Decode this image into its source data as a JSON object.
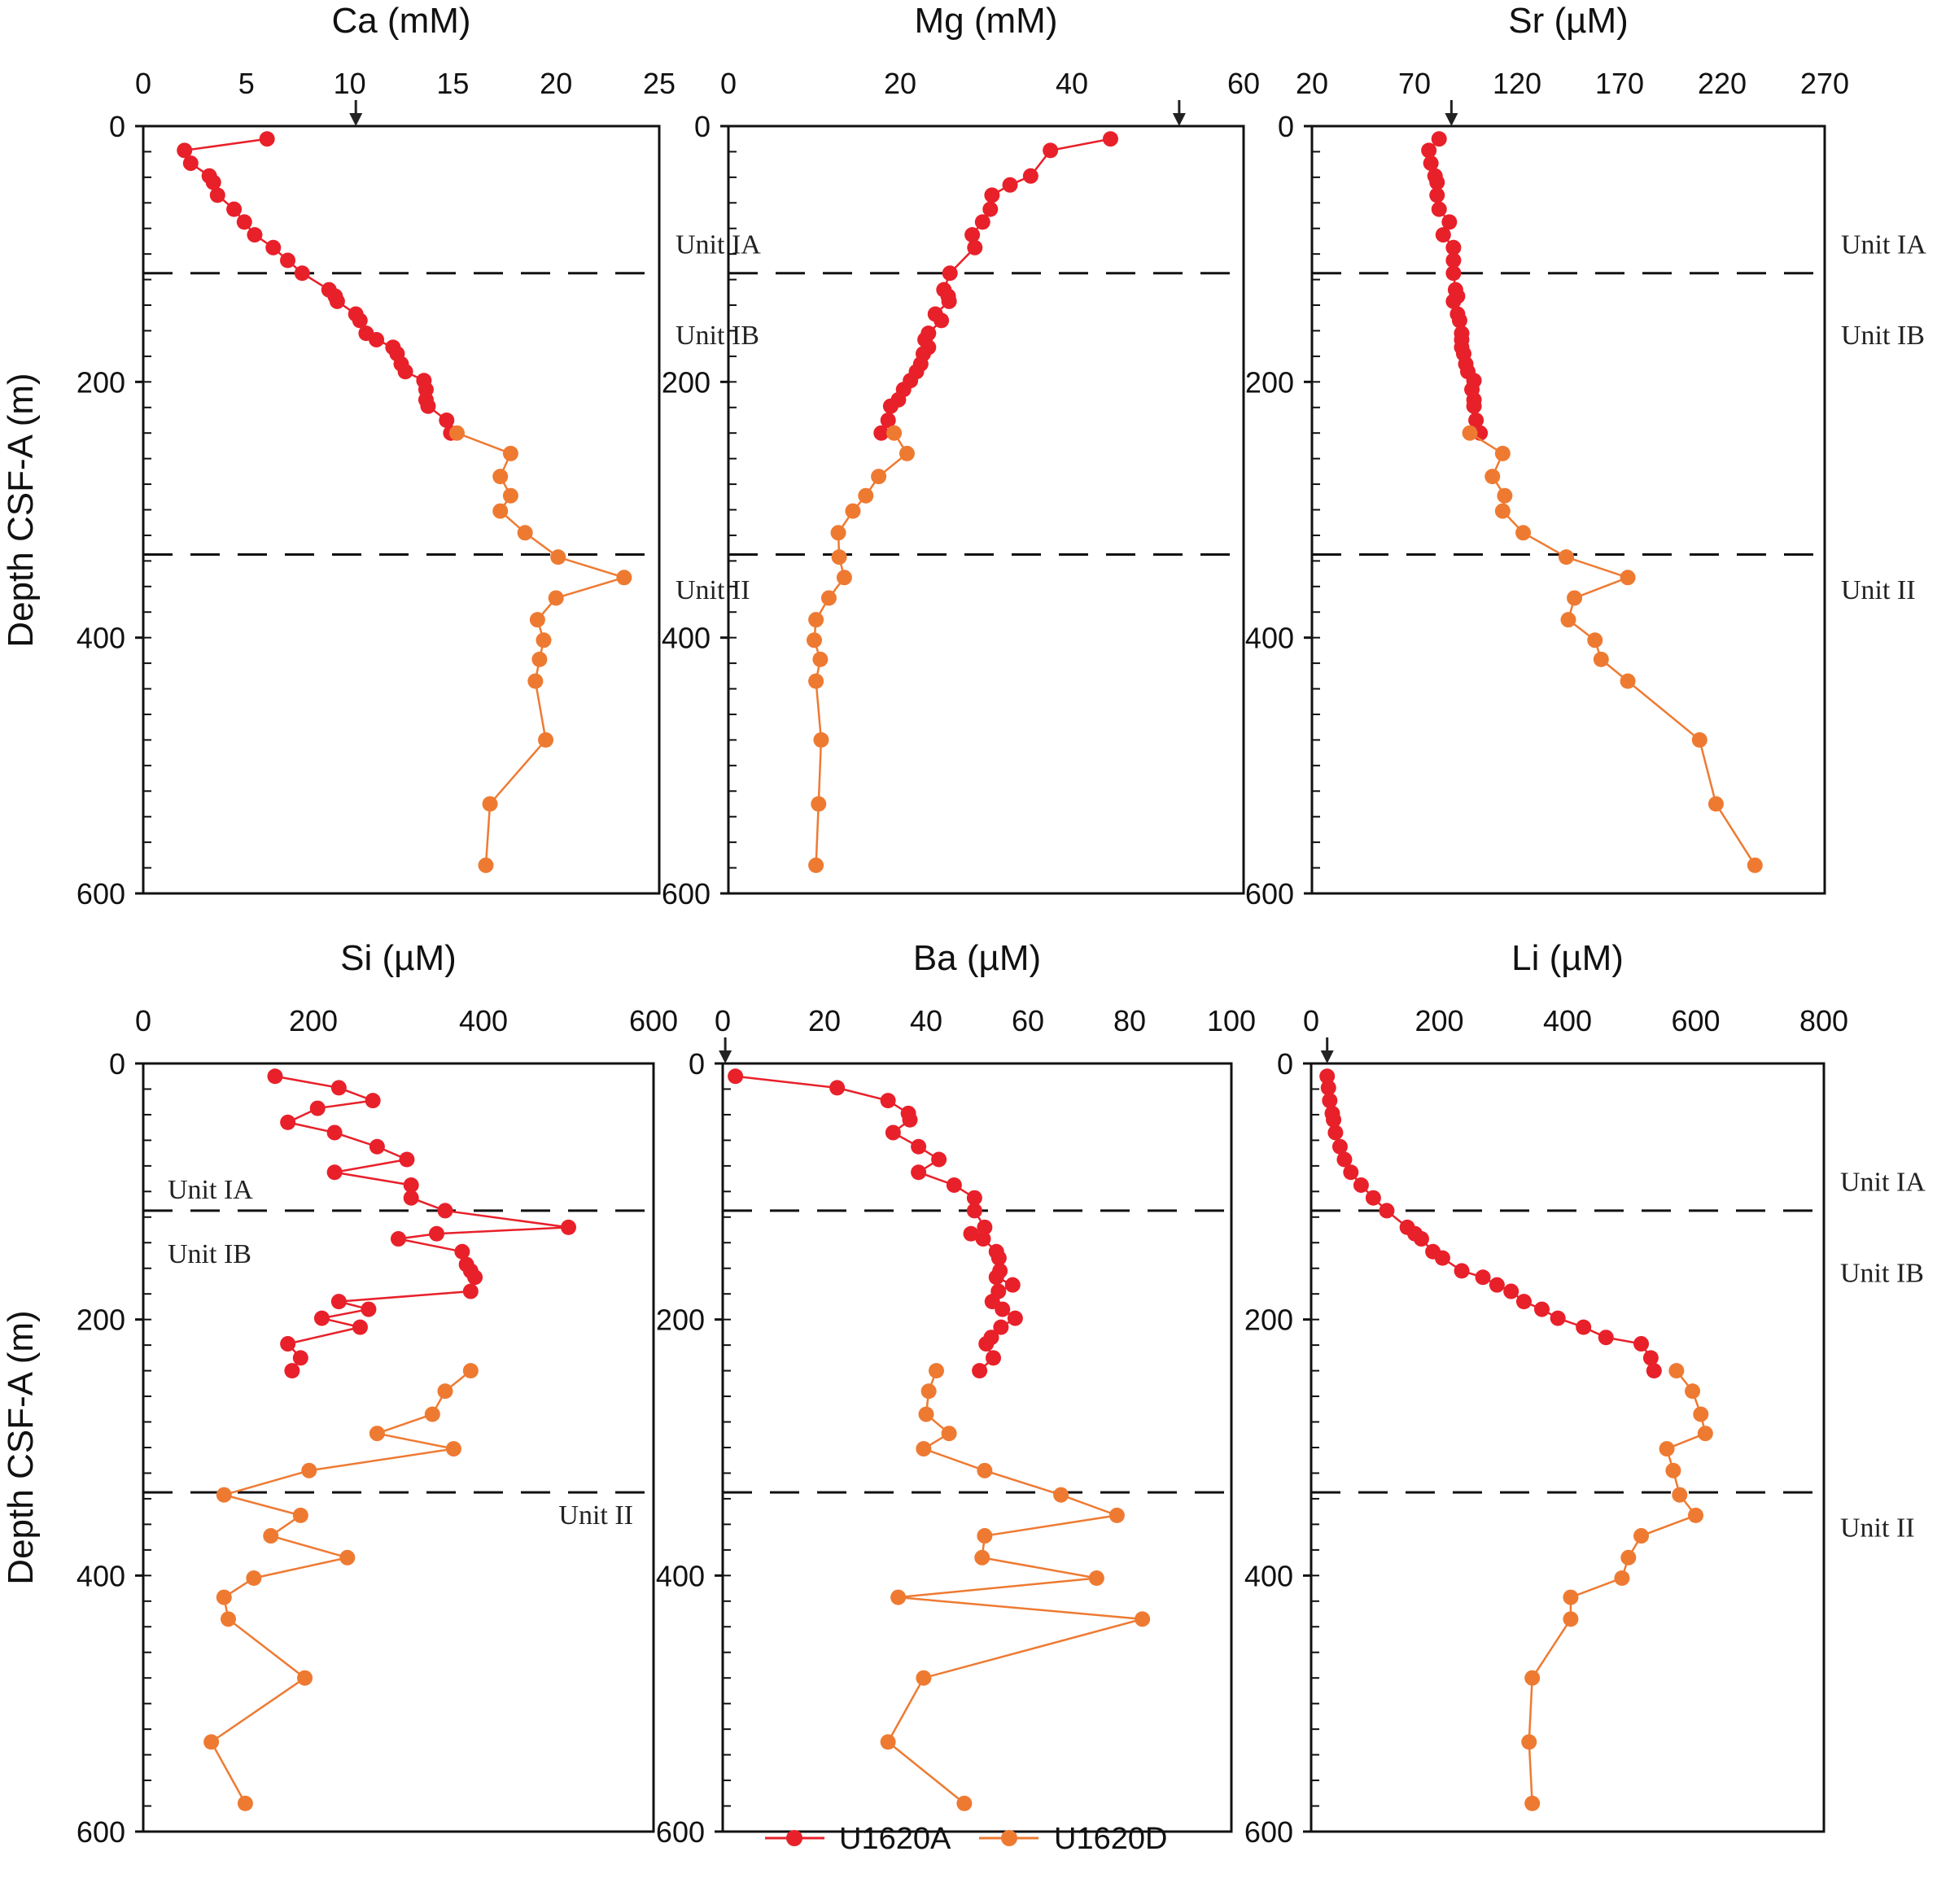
{
  "chart_data": {
    "type": "line",
    "ylabel": "Depth CSF-A (m)",
    "ylim": [
      0,
      600
    ],
    "y_ticks": [
      0,
      200,
      400,
      600
    ],
    "y_minor_step": 20,
    "y_reversed": true,
    "legend": {
      "placement": "bottom-center",
      "entries": [
        {
          "name": "U1620A",
          "color": "#e8202a"
        },
        {
          "name": "U1620D",
          "color": "#ee7a32"
        }
      ]
    },
    "unit_boundaries": [
      115,
      335
    ],
    "panels": [
      {
        "title": "Ca (mM)",
        "xlim": [
          0,
          25
        ],
        "ticks": [
          0,
          5,
          10,
          15,
          20,
          25
        ],
        "tick_labels": [
          "0",
          "5",
          "10",
          "15",
          "20",
          "25"
        ],
        "arrow": 10.3,
        "units": [
          {
            "label": "Unit IA",
            "depth": 92,
            "side": "right"
          },
          {
            "label": "Unit IB",
            "depth": 163,
            "side": "right"
          },
          {
            "label": "Unit II",
            "depth": 362,
            "side": "right"
          }
        ],
        "series": [
          {
            "name": "U1620A",
            "depth": [
              10,
              19,
              29,
              39,
              44,
              54,
              65,
              75,
              85,
              95,
              105,
              115,
              128,
              133,
              137,
              147,
              152,
              162,
              167,
              173,
              178,
              186,
              192,
              199,
              206,
              214,
              219,
              230,
              240
            ],
            "values": [
              6,
              2,
              2.3,
              3.2,
              3.4,
              3.6,
              4.4,
              4.9,
              5.4,
              6.3,
              7,
              7.7,
              9,
              9.3,
              9.4,
              10.3,
              10.5,
              10.8,
              11.3,
              12.1,
              12.3,
              12.5,
              12.7,
              13.6,
              13.7,
              13.7,
              13.8,
              14.7,
              14.9
            ]
          },
          {
            "name": "U1620D",
            "depth": [
              240,
              256,
              274,
              289,
              301,
              318,
              337,
              353,
              369,
              386,
              402,
              417,
              434,
              480,
              530,
              578
            ],
            "values": [
              15.2,
              17.8,
              17.3,
              17.8,
              17.3,
              18.5,
              20.1,
              23.3,
              20,
              19.1,
              19.4,
              19.2,
              19.0,
              19.5,
              16.8,
              16.6
            ]
          }
        ]
      },
      {
        "title": "Mg (mM)",
        "xlim": [
          0,
          60
        ],
        "ticks": [
          0,
          20,
          40,
          60
        ],
        "tick_labels": [
          "0",
          "20",
          "40",
          "60"
        ],
        "arrow": 52.5,
        "units": [],
        "series": [
          {
            "name": "U1620A",
            "depth": [
              10,
              19,
              39,
              46,
              54,
              65,
              75,
              85,
              95,
              115,
              128,
              133,
              137,
              147,
              152,
              162,
              167,
              173,
              178,
              186,
              192,
              199,
              206,
              214,
              219,
              230,
              240
            ],
            "values": [
              44.5,
              37.5,
              35.2,
              32.8,
              30.7,
              30.5,
              29.6,
              28.4,
              28.7,
              25.8,
              25.1,
              25.6,
              25.7,
              24.1,
              24.8,
              23.3,
              22.9,
              23.3,
              22.7,
              22.4,
              21.9,
              21.2,
              20.4,
              19.8,
              18.9,
              18.6,
              17.8
            ]
          },
          {
            "name": "U1620D",
            "depth": [
              240,
              256,
              274,
              289,
              301,
              318,
              337,
              353,
              369,
              386,
              402,
              417,
              434,
              480,
              530,
              578
            ],
            "values": [
              19.3,
              20.8,
              17.5,
              16,
              14.5,
              12.8,
              12.9,
              13.5,
              11.7,
              10.2,
              10,
              10.7,
              10.2,
              10.8,
              10.5,
              10.2
            ]
          }
        ]
      },
      {
        "title": "Sr (µM)",
        "xlim": [
          20,
          270
        ],
        "ticks": [
          20,
          70,
          120,
          170,
          220,
          270
        ],
        "tick_labels": [
          "20",
          "70",
          "120",
          "170",
          "220",
          "270"
        ],
        "arrow": 88,
        "units": [
          {
            "label": "Unit IA",
            "depth": 92,
            "side": "right"
          },
          {
            "label": "Unit IB",
            "depth": 163,
            "side": "right"
          },
          {
            "label": "Unit II",
            "depth": 362,
            "side": "right"
          }
        ],
        "series": [
          {
            "name": "U1620A",
            "depth": [
              10,
              19,
              29,
              39,
              44,
              54,
              65,
              75,
              85,
              95,
              105,
              115,
              128,
              133,
              137,
              147,
              152,
              162,
              167,
              173,
              178,
              186,
              192,
              199,
              206,
              214,
              219,
              230,
              240
            ],
            "values": [
              82,
              77,
              78,
              80,
              81,
              81,
              82,
              87,
              84,
              89,
              89,
              89,
              90,
              91,
              89,
              91,
              92,
              93,
              93,
              93,
              94,
              95,
              96,
              99,
              98,
              99,
              99,
              100,
              102
            ]
          },
          {
            "name": "U1620D",
            "depth": [
              240,
              256,
              274,
              289,
              301,
              318,
              337,
              353,
              369,
              386,
              402,
              417,
              434,
              480,
              530,
              578
            ],
            "values": [
              97,
              113,
              108,
              114,
              113,
              123,
              144,
              174,
              148,
              145,
              158,
              161,
              174,
              209,
              217,
              236
            ]
          }
        ]
      },
      {
        "title": "Si (µM)",
        "xlim": [
          0,
          600
        ],
        "ticks": [
          0,
          200,
          400,
          600
        ],
        "tick_labels": [
          "0",
          "200",
          "400",
          "600"
        ],
        "arrow": null,
        "units": [
          {
            "label": "Unit IA",
            "depth": 98,
            "side": "left"
          },
          {
            "label": "Unit IB",
            "depth": 148,
            "side": "left"
          },
          {
            "label": "Unit II",
            "depth": 352,
            "side": "right"
          }
        ],
        "series": [
          {
            "name": "U1620A",
            "depth": [
              10,
              19,
              29,
              35,
              46,
              54,
              65,
              75,
              85,
              95,
              105,
              115,
              128,
              133,
              137,
              147,
              157,
              162,
              167,
              178,
              186,
              192,
              199,
              206,
              219,
              230,
              240
            ],
            "values": [
              155,
              230,
              270,
              205,
              170,
              225,
              275,
              310,
              225,
              315,
              315,
              355,
              500,
              345,
              300,
              375,
              380,
              385,
              390,
              385,
              230,
              265,
              210,
              255,
              170,
              185,
              175
            ]
          },
          {
            "name": "U1620D",
            "depth": [
              240,
              256,
              274,
              289,
              301,
              318,
              337,
              353,
              369,
              386,
              402,
              417,
              434,
              480,
              530,
              578
            ],
            "values": [
              385,
              355,
              340,
              275,
              365,
              195,
              95,
              185,
              150,
              240,
              130,
              95,
              100,
              190,
              80,
              120
            ]
          }
        ]
      },
      {
        "title": "Ba (µM)",
        "xlim": [
          0,
          100
        ],
        "ticks": [
          0,
          20,
          40,
          60,
          80,
          100
        ],
        "tick_labels": [
          "0",
          "20",
          "40",
          "60",
          "80",
          "100"
        ],
        "arrow": 0.5,
        "units": [],
        "series": [
          {
            "name": "U1620A",
            "depth": [
              10,
              19,
              29,
              39,
              44,
              54,
              65,
              75,
              85,
              95,
              105,
              115,
              128,
              133,
              137,
              147,
              152,
              162,
              167,
              173,
              178,
              186,
              192,
              199,
              206,
              214,
              219,
              230,
              240
            ],
            "values": [
              2.5,
              22.5,
              32.5,
              36.5,
              36.8,
              33.5,
              38.5,
              42.5,
              38.5,
              45.5,
              49.5,
              49.5,
              51.5,
              48.8,
              51.2,
              53.8,
              54.3,
              54.5,
              53.8,
              57,
              54.2,
              53,
              55,
              57.5,
              54.7,
              52.8,
              51.8,
              53.2,
              50.5
            ]
          },
          {
            "name": "U1620D",
            "depth": [
              240,
              256,
              274,
              289,
              301,
              318,
              337,
              353,
              369,
              386,
              402,
              417,
              434,
              480,
              530,
              578
            ],
            "values": [
              42,
              40.5,
              40,
              44.5,
              39.5,
              51.5,
              66.5,
              77.5,
              51.5,
              51,
              73.5,
              34.5,
              82.5,
              39.5,
              32.5,
              47.5
            ]
          }
        ]
      },
      {
        "title": "Li (µM)",
        "xlim": [
          0,
          800
        ],
        "ticks": [
          0,
          200,
          400,
          600,
          800
        ],
        "tick_labels": [
          "0",
          "200",
          "400",
          "600",
          "800"
        ],
        "arrow": 25,
        "units": [
          {
            "label": "Unit IA",
            "depth": 92,
            "side": "right"
          },
          {
            "label": "Unit IB",
            "depth": 163,
            "side": "right"
          },
          {
            "label": "Unit II",
            "depth": 362,
            "side": "right"
          }
        ],
        "series": [
          {
            "name": "U1620A",
            "depth": [
              10,
              19,
              29,
              39,
              44,
              54,
              65,
              75,
              85,
              95,
              105,
              115,
              128,
              133,
              137,
              147,
              152,
              162,
              167,
              173,
              178,
              186,
              192,
              199,
              206,
              214,
              219,
              230,
              240
            ],
            "values": [
              25,
              27,
              29,
              33,
              35,
              38,
              45,
              52,
              62,
              78,
              97,
              118,
              150,
              162,
              172,
              190,
              205,
              235,
              268,
              290,
              312,
              332,
              360,
              385,
              425,
              460,
              515,
              530,
              535
            ]
          },
          {
            "name": "U1620D",
            "depth": [
              240,
              256,
              274,
              289,
              301,
              318,
              337,
              353,
              369,
              386,
              402,
              417,
              434,
              480,
              530,
              578
            ],
            "values": [
              570,
              595,
              608,
              615,
              555,
              565,
              575,
              600,
              515,
              495,
              485,
              405,
              405,
              345,
              340,
              345
            ]
          }
        ]
      }
    ]
  }
}
